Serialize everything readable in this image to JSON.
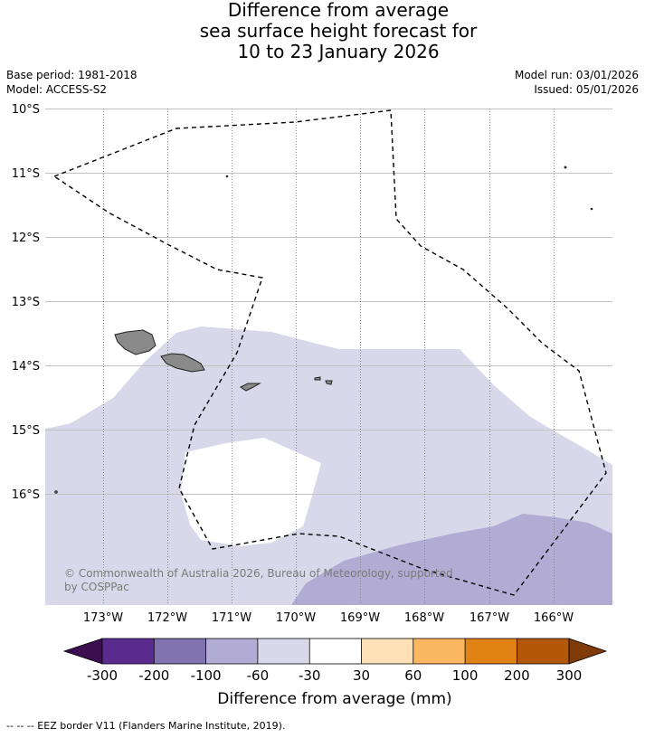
{
  "title": {
    "line1": "Difference from average",
    "line2": "sea surface height forecast for",
    "line3": "10 to 23 January 2026"
  },
  "meta": {
    "base_period": "Base period: 1981-2018",
    "model": "Model: ACCESS-S2",
    "model_run": "Model run: 03/01/2026",
    "issued": "Issued: 05/01/2026"
  },
  "map": {
    "lat_labels": [
      "10°S",
      "11°S",
      "12°S",
      "13°S",
      "14°S",
      "15°S",
      "16°S"
    ],
    "lon_labels": [
      "173°W",
      "172°W",
      "171°W",
      "170°W",
      "169°W",
      "168°W",
      "167°W",
      "166°W"
    ],
    "copyright_line1": "© Commonwealth of Australia 2026, Bureau of Meteorology, supported",
    "copyright_line2": "by COSPPac",
    "colors": {
      "ocean_light": "#d8d8ea",
      "ocean_mid": "#b2acd4",
      "land": "#8a8a8a",
      "grid": "#9a9a9a"
    }
  },
  "colorbar": {
    "title": "Difference from average (mm)",
    "labels": [
      "-300",
      "-200",
      "-100",
      "-60",
      "-30",
      "30",
      "60",
      "100",
      "200",
      "300"
    ],
    "low_extend_color": "#3b0f4f",
    "high_extend_color": "#7f3b08",
    "colors": [
      "#5b2a8e",
      "#8173b0",
      "#b2acd4",
      "#d8d8ea",
      "#ffffff",
      "#fee0b6",
      "#fbb661",
      "#e08214",
      "#b35806"
    ]
  },
  "footnote": "-- -- -- EEZ border V11 (Flanders Marine Institute, 2019)."
}
